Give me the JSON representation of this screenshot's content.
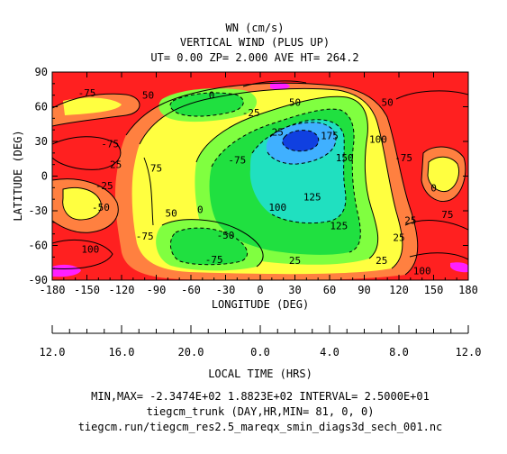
{
  "chart_data": {
    "type": "contour",
    "title_lines": [
      "WN (cm/s)",
      "VERTICAL WIND (PLUS UP)",
      "UT= 0.00 ZP=  2.000 AVE HT= 264.2"
    ],
    "xlabel": "LONGITUDE (DEG)",
    "ylabel": "LATITUDE (DEG)",
    "xlim": [
      -180,
      180
    ],
    "ylim": [
      -90,
      90
    ],
    "x_ticks": [
      -180,
      -150,
      -120,
      -90,
      -60,
      -30,
      0,
      30,
      60,
      90,
      120,
      150,
      180
    ],
    "y_ticks": [
      -90,
      -60,
      -30,
      0,
      30,
      60,
      90
    ],
    "local_time_label": "LOCAL TIME (HRS)",
    "local_time_ticks": [
      "12.0",
      "16.0",
      "20.0",
      "0.0",
      "4.0",
      "8.0",
      "12.0"
    ],
    "contour_interval": 25,
    "min": -234.74,
    "max": 188.23,
    "contour_labels": [
      {
        "text": "-75",
        "lon": -150,
        "lat": 72
      },
      {
        "text": "50",
        "lon": -97,
        "lat": 70
      },
      {
        "text": "0",
        "lon": -42,
        "lat": 70
      },
      {
        "text": "-25",
        "lon": -8,
        "lat": 55
      },
      {
        "text": "50",
        "lon": 30,
        "lat": 64
      },
      {
        "text": "50",
        "lon": 110,
        "lat": 64
      },
      {
        "text": "-75",
        "lon": -130,
        "lat": 28
      },
      {
        "text": "25",
        "lon": -125,
        "lat": 10
      },
      {
        "text": "75",
        "lon": -90,
        "lat": 7
      },
      {
        "text": "25",
        "lon": 15,
        "lat": 38
      },
      {
        "text": "175",
        "lon": 60,
        "lat": 35
      },
      {
        "text": "100",
        "lon": 102,
        "lat": 32
      },
      {
        "text": "150",
        "lon": 73,
        "lat": 16
      },
      {
        "text": "-75",
        "lon": 124,
        "lat": 16
      },
      {
        "text": "-75",
        "lon": -20,
        "lat": 14
      },
      {
        "text": "0",
        "lon": 150,
        "lat": -10
      },
      {
        "text": "-25",
        "lon": -135,
        "lat": -8
      },
      {
        "text": "-50",
        "lon": -138,
        "lat": -27
      },
      {
        "text": "125",
        "lon": 45,
        "lat": -18
      },
      {
        "text": "100",
        "lon": 15,
        "lat": -27
      },
      {
        "text": "0",
        "lon": -52,
        "lat": -29
      },
      {
        "text": "50",
        "lon": -77,
        "lat": -32
      },
      {
        "text": "125",
        "lon": 68,
        "lat": -43
      },
      {
        "text": "75",
        "lon": 162,
        "lat": -33
      },
      {
        "text": "25",
        "lon": 130,
        "lat": -38
      },
      {
        "text": "-75",
        "lon": -100,
        "lat": -52
      },
      {
        "text": "-50",
        "lon": -30,
        "lat": -51
      },
      {
        "text": "25",
        "lon": 120,
        "lat": -53
      },
      {
        "text": "100",
        "lon": -147,
        "lat": -63
      },
      {
        "text": "-75",
        "lon": -40,
        "lat": -72
      },
      {
        "text": "25",
        "lon": 30,
        "lat": -73
      },
      {
        "text": "25",
        "lon": 105,
        "lat": -73
      },
      {
        "text": "100",
        "lon": 140,
        "lat": -82
      }
    ]
  },
  "footer": {
    "minmax": "MIN,MAX= -2.3474E+02  1.8823E+02 INTERVAL=  2.5000E+01",
    "model": "tiegcm_trunk (DAY,HR,MIN= 81, 0, 0)",
    "file": "tiegcm.run/tiegcm_res2.5_mareqx_smin_diags3d_sech_001.nc"
  },
  "colors": {
    "red": "#ff2020",
    "orange": "#ff8040",
    "yellow": "#ffff40",
    "lightgreen": "#80ff40",
    "green": "#20e040",
    "cyan": "#20e0c0",
    "lightblue": "#40b0ff",
    "blue": "#1040e0",
    "magenta": "#ff20ff"
  }
}
